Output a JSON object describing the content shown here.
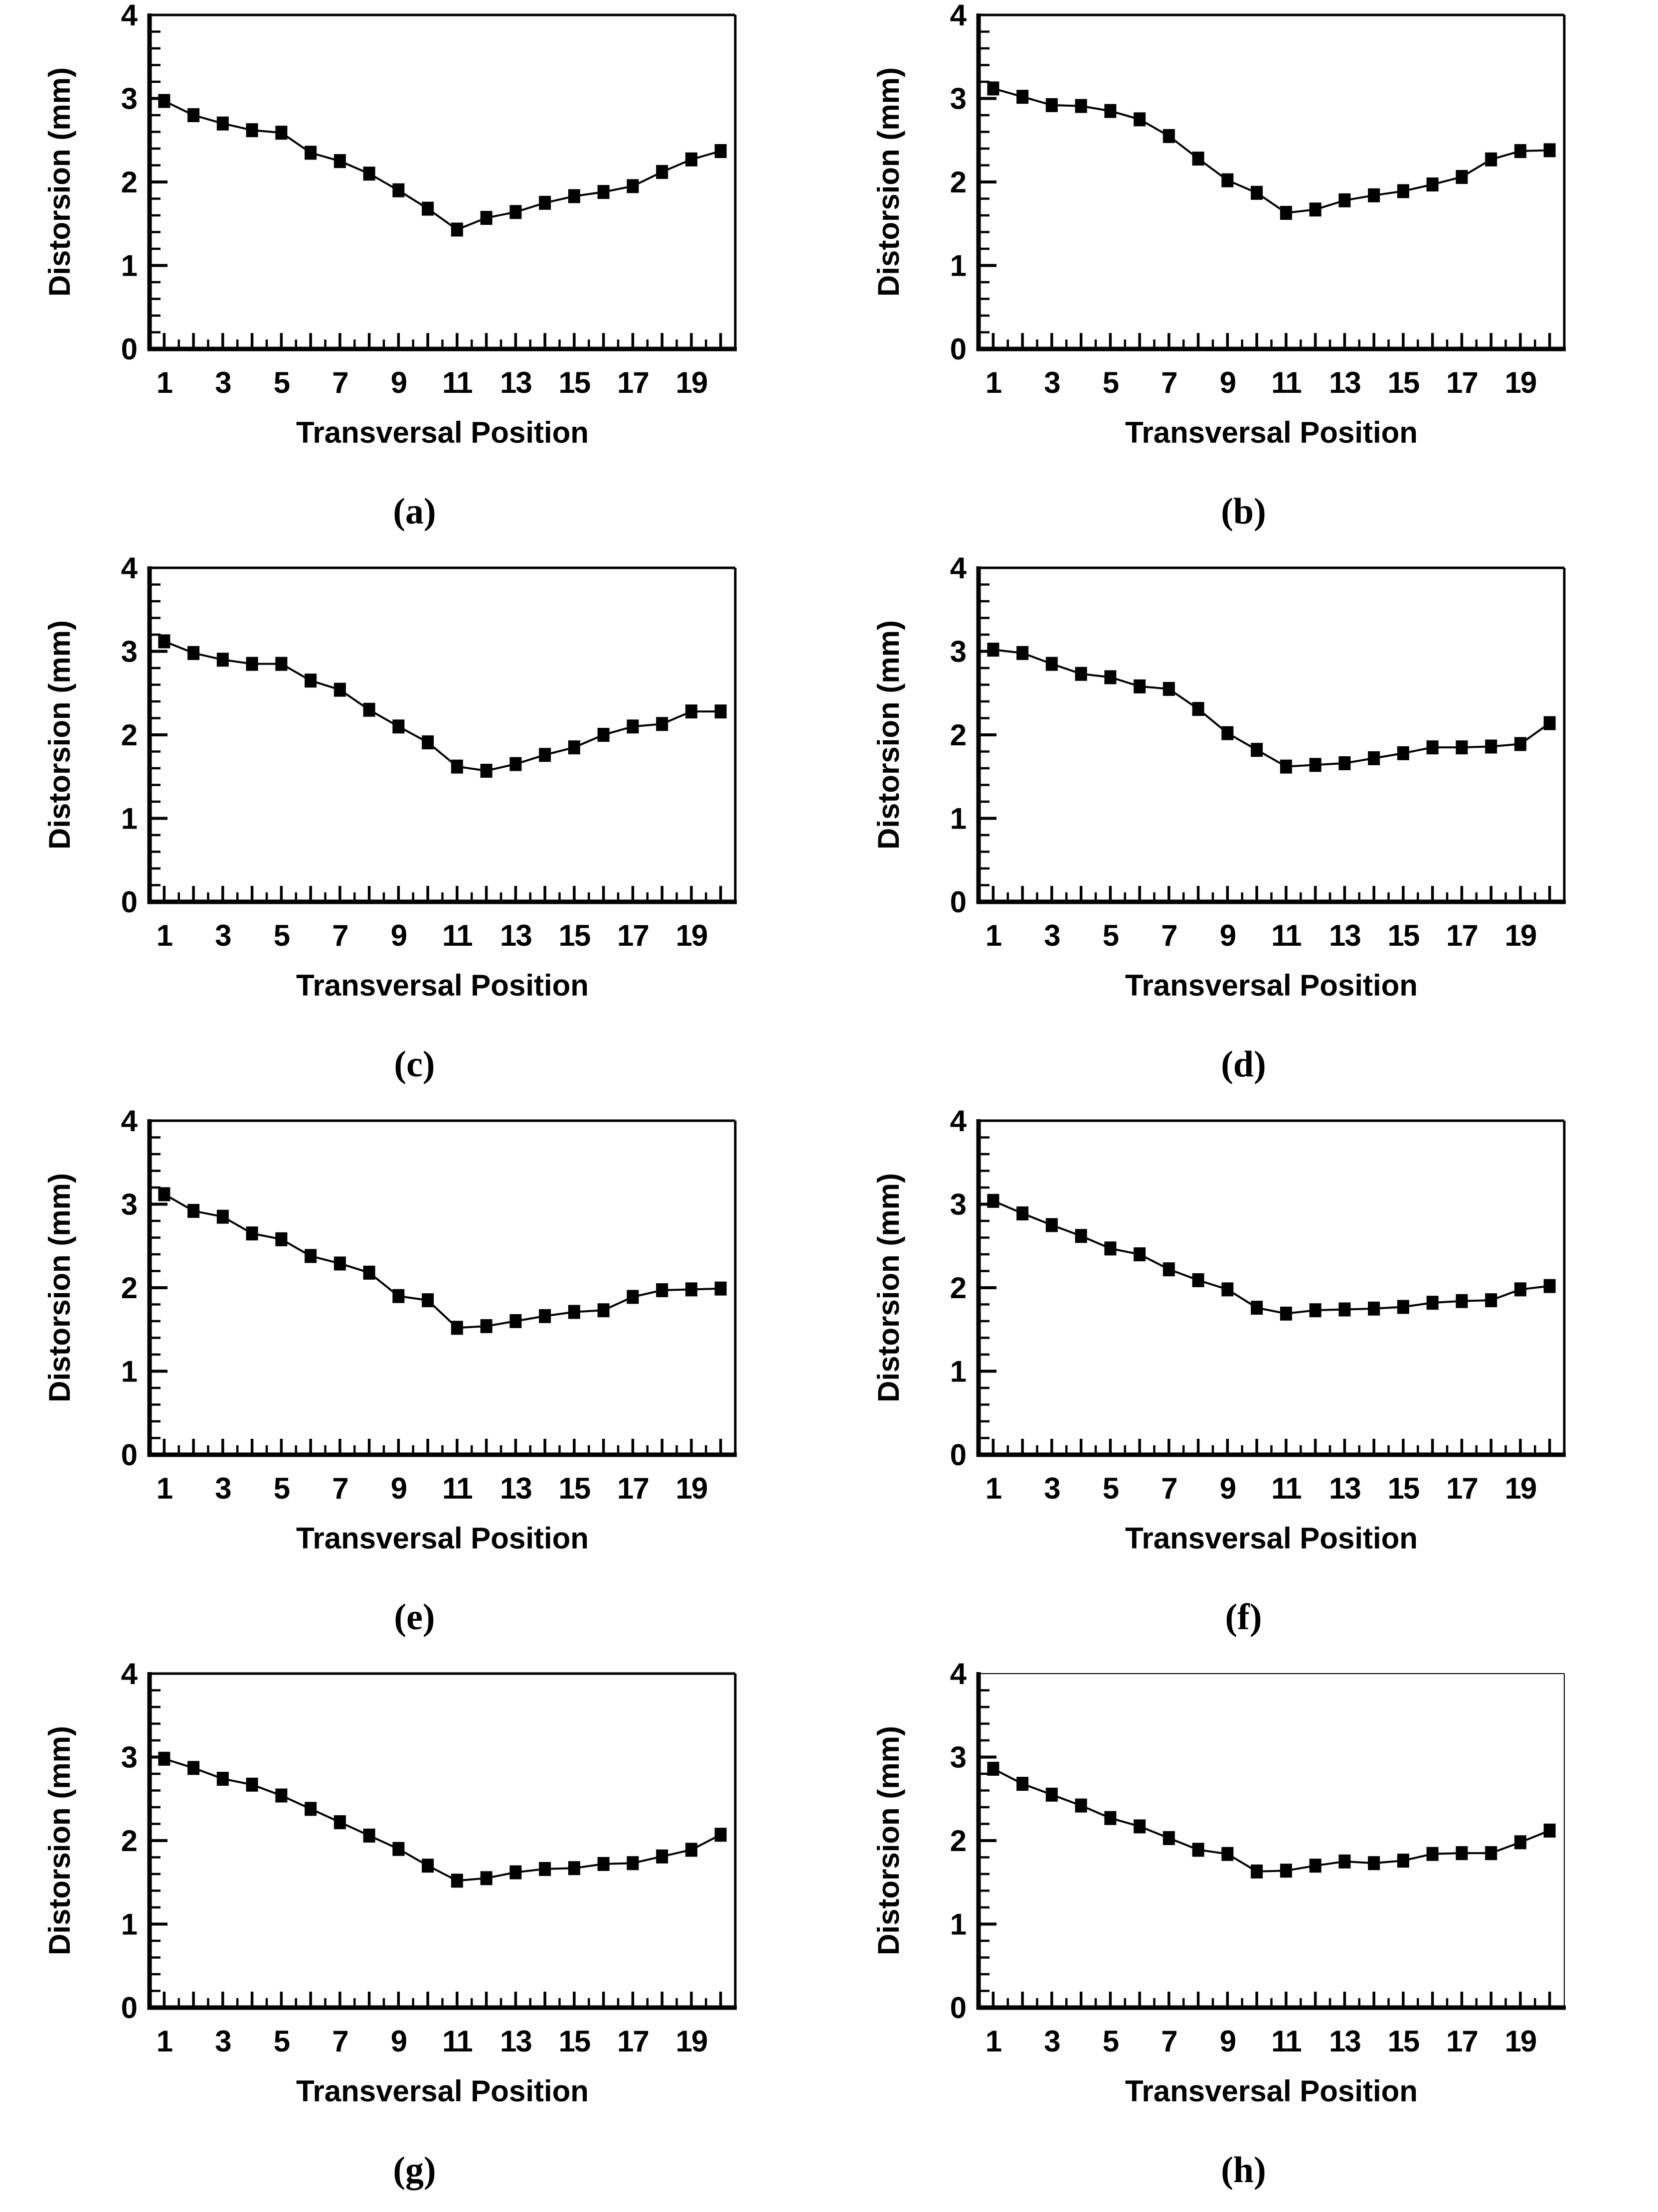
{
  "page": {
    "background": "#ffffff",
    "foreground": "#000000"
  },
  "axes": {
    "xlabel": "Transversal Position",
    "ylabel": "Distorsion (mm)",
    "ylim": [
      0,
      4
    ],
    "yticks": [
      0,
      1,
      2,
      3,
      4
    ],
    "ytick_labels": [
      "0",
      "1",
      "2",
      "3",
      "4"
    ],
    "yminor_step": 0.2,
    "x_count": 20,
    "x": [
      1,
      2,
      3,
      4,
      5,
      6,
      7,
      8,
      9,
      10,
      11,
      12,
      13,
      14,
      15,
      16,
      17,
      18,
      19,
      20
    ],
    "xtick_label_positions": [
      1,
      3,
      5,
      7,
      9,
      11,
      13,
      15,
      17,
      19
    ],
    "xtick_labels": [
      "1",
      "3",
      "5",
      "7",
      "9",
      "11",
      "13",
      "15",
      "17",
      "19"
    ],
    "grid": "off",
    "legend": "none"
  },
  "style": {
    "line_color": "#000000",
    "marker": "filled-square",
    "marker_color": "#000000",
    "background": "#ffffff"
  },
  "chart_data": [
    {
      "id": "a",
      "caption": "(a)",
      "type": "line",
      "frame": "thick",
      "values": [
        2.97,
        2.8,
        2.7,
        2.62,
        2.59,
        2.35,
        2.25,
        2.1,
        1.9,
        1.68,
        1.43,
        1.57,
        1.64,
        1.75,
        1.83,
        1.88,
        1.95,
        2.12,
        2.27,
        2.37
      ]
    },
    {
      "id": "b",
      "caption": "(b)",
      "type": "line",
      "frame": "thick",
      "values": [
        3.12,
        3.02,
        2.92,
        2.91,
        2.85,
        2.75,
        2.55,
        2.28,
        2.02,
        1.87,
        1.63,
        1.67,
        1.78,
        1.84,
        1.89,
        1.97,
        2.06,
        2.27,
        2.37,
        2.38
      ]
    },
    {
      "id": "c",
      "caption": "(c)",
      "type": "line",
      "frame": "thick",
      "values": [
        3.12,
        2.98,
        2.9,
        2.85,
        2.85,
        2.65,
        2.54,
        2.3,
        2.1,
        1.91,
        1.62,
        1.57,
        1.65,
        1.76,
        1.85,
        2.0,
        2.1,
        2.13,
        2.28,
        2.28
      ]
    },
    {
      "id": "d",
      "caption": "(d)",
      "type": "line",
      "frame": "thick",
      "values": [
        3.02,
        2.98,
        2.85,
        2.73,
        2.69,
        2.58,
        2.55,
        2.31,
        2.02,
        1.82,
        1.62,
        1.64,
        1.66,
        1.72,
        1.78,
        1.85,
        1.85,
        1.86,
        1.89,
        2.14
      ]
    },
    {
      "id": "e",
      "caption": "(e)",
      "type": "line",
      "frame": "thick",
      "values": [
        3.12,
        2.92,
        2.85,
        2.65,
        2.58,
        2.38,
        2.29,
        2.18,
        1.9,
        1.85,
        1.52,
        1.54,
        1.6,
        1.66,
        1.71,
        1.73,
        1.89,
        1.97,
        1.98,
        1.99
      ]
    },
    {
      "id": "f",
      "caption": "(f)",
      "type": "line",
      "frame": "thick",
      "values": [
        3.04,
        2.89,
        2.75,
        2.62,
        2.47,
        2.4,
        2.22,
        2.09,
        1.98,
        1.76,
        1.69,
        1.73,
        1.74,
        1.75,
        1.77,
        1.82,
        1.84,
        1.85,
        1.98,
        2.02
      ]
    },
    {
      "id": "g",
      "caption": "(g)",
      "type": "line",
      "frame": "thick",
      "values": [
        2.98,
        2.87,
        2.74,
        2.67,
        2.54,
        2.38,
        2.22,
        2.06,
        1.9,
        1.7,
        1.52,
        1.55,
        1.62,
        1.66,
        1.67,
        1.72,
        1.73,
        1.81,
        1.89,
        2.07
      ]
    },
    {
      "id": "h",
      "caption": "(h)",
      "type": "line",
      "frame": "thin-top-right",
      "values": [
        2.86,
        2.68,
        2.55,
        2.42,
        2.27,
        2.17,
        2.03,
        1.89,
        1.84,
        1.63,
        1.64,
        1.7,
        1.75,
        1.73,
        1.76,
        1.84,
        1.85,
        1.85,
        1.98,
        2.12
      ]
    }
  ]
}
